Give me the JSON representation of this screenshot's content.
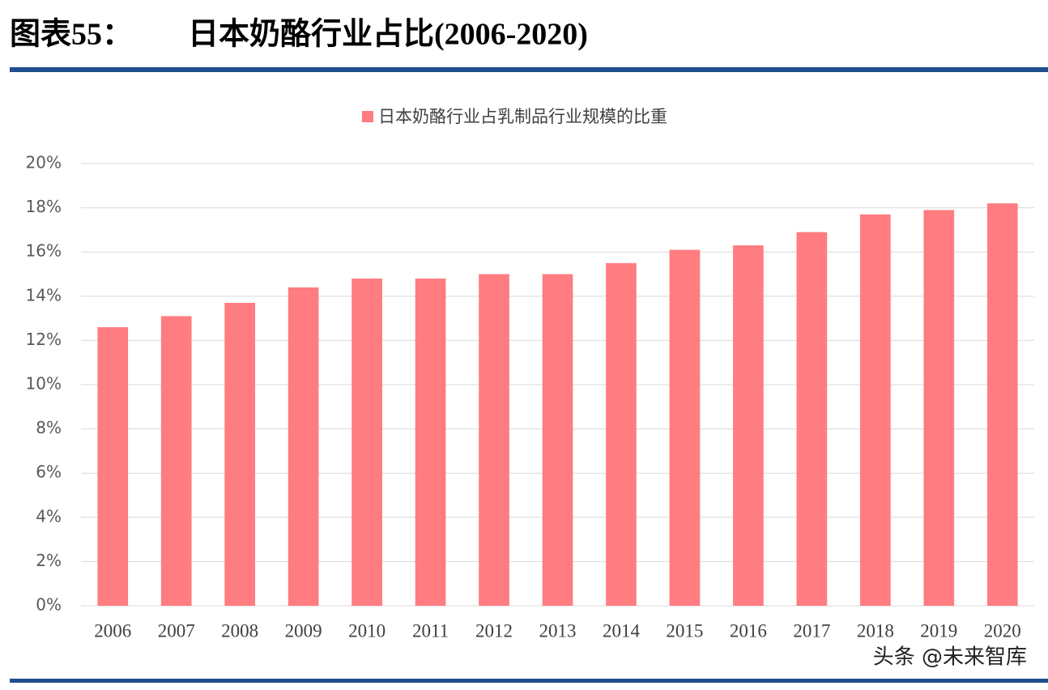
{
  "chart_data": {
    "type": "bar",
    "figure_label": "图表55：",
    "title": "日本奶酪行业占比(2006-2020)",
    "watermark": "头条 @未来智库",
    "categories": [
      "2006",
      "2007",
      "2008",
      "2009",
      "2010",
      "2011",
      "2012",
      "2013",
      "2014",
      "2015",
      "2016",
      "2017",
      "2018",
      "2019",
      "2020"
    ],
    "series": [
      {
        "name": "日本奶酪行业占乳制品行业规模的比重",
        "color": "#ff7c80",
        "values": [
          12.6,
          13.1,
          13.7,
          14.4,
          14.8,
          14.8,
          15.0,
          15.0,
          15.5,
          16.1,
          16.3,
          16.9,
          17.7,
          17.9,
          18.2
        ]
      }
    ],
    "ylim": [
      0,
      20
    ],
    "yticks": [
      {
        "value": 0,
        "label": "0%"
      },
      {
        "value": 2,
        "label": "2%"
      },
      {
        "value": 4,
        "label": "4%"
      },
      {
        "value": 6,
        "label": "6%"
      },
      {
        "value": 8,
        "label": "8%"
      },
      {
        "value": 10,
        "label": "10%"
      },
      {
        "value": 12,
        "label": "12%"
      },
      {
        "value": 14,
        "label": "14%"
      },
      {
        "value": 16,
        "label": "16%"
      },
      {
        "value": 18,
        "label": "18%"
      },
      {
        "value": 20,
        "label": "20%"
      }
    ],
    "grid": true,
    "legend": "top"
  }
}
